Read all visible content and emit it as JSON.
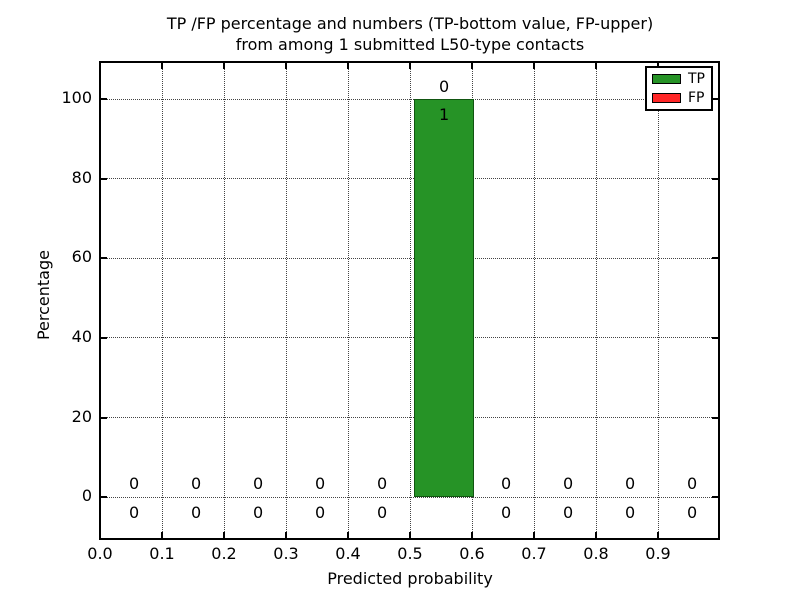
{
  "page": {
    "background": "#ffffff"
  },
  "chart_data": {
    "type": "bar",
    "title_lines": [
      "TP /FP percentage and numbers (TP-bottom value, FP-upper)",
      "from among 1 submitted L50-type contacts"
    ],
    "xlabel": "Predicted probability",
    "ylabel": "Percentage",
    "xlim": [
      0.0,
      1.0
    ],
    "ylim": [
      -10.8,
      109.4
    ],
    "xtick_values": [
      0.0,
      0.1,
      0.2,
      0.3,
      0.4,
      0.5,
      0.6,
      0.7,
      0.8,
      0.9
    ],
    "xtick_labels": [
      "0.0",
      "0.1",
      "0.2",
      "0.3",
      "0.4",
      "0.5",
      "0.6",
      "0.7",
      "0.8",
      "0.9"
    ],
    "ytick_values": [
      0,
      20,
      40,
      60,
      80,
      100
    ],
    "ytick_labels": [
      "0",
      "20",
      "40",
      "60",
      "80",
      "100"
    ],
    "grid": {
      "show": true,
      "style": "dotted"
    },
    "legend_position": "upper right",
    "bin_width": 0.1,
    "bin_centers": [
      0.055,
      0.155,
      0.255,
      0.355,
      0.455,
      0.555,
      0.655,
      0.755,
      0.855,
      0.955
    ],
    "series": [
      {
        "name": "TP",
        "color": "#269326",
        "percent": [
          0,
          0,
          0,
          0,
          0,
          100,
          0,
          0,
          0,
          0
        ],
        "counts": [
          0,
          0,
          0,
          0,
          0,
          1,
          0,
          0,
          0,
          0
        ]
      },
      {
        "name": "FP",
        "color": "#ff2626",
        "percent": [
          0,
          0,
          0,
          0,
          0,
          0,
          0,
          0,
          0,
          0
        ],
        "counts": [
          0,
          0,
          0,
          0,
          0,
          0,
          0,
          0,
          0,
          0
        ]
      }
    ]
  }
}
